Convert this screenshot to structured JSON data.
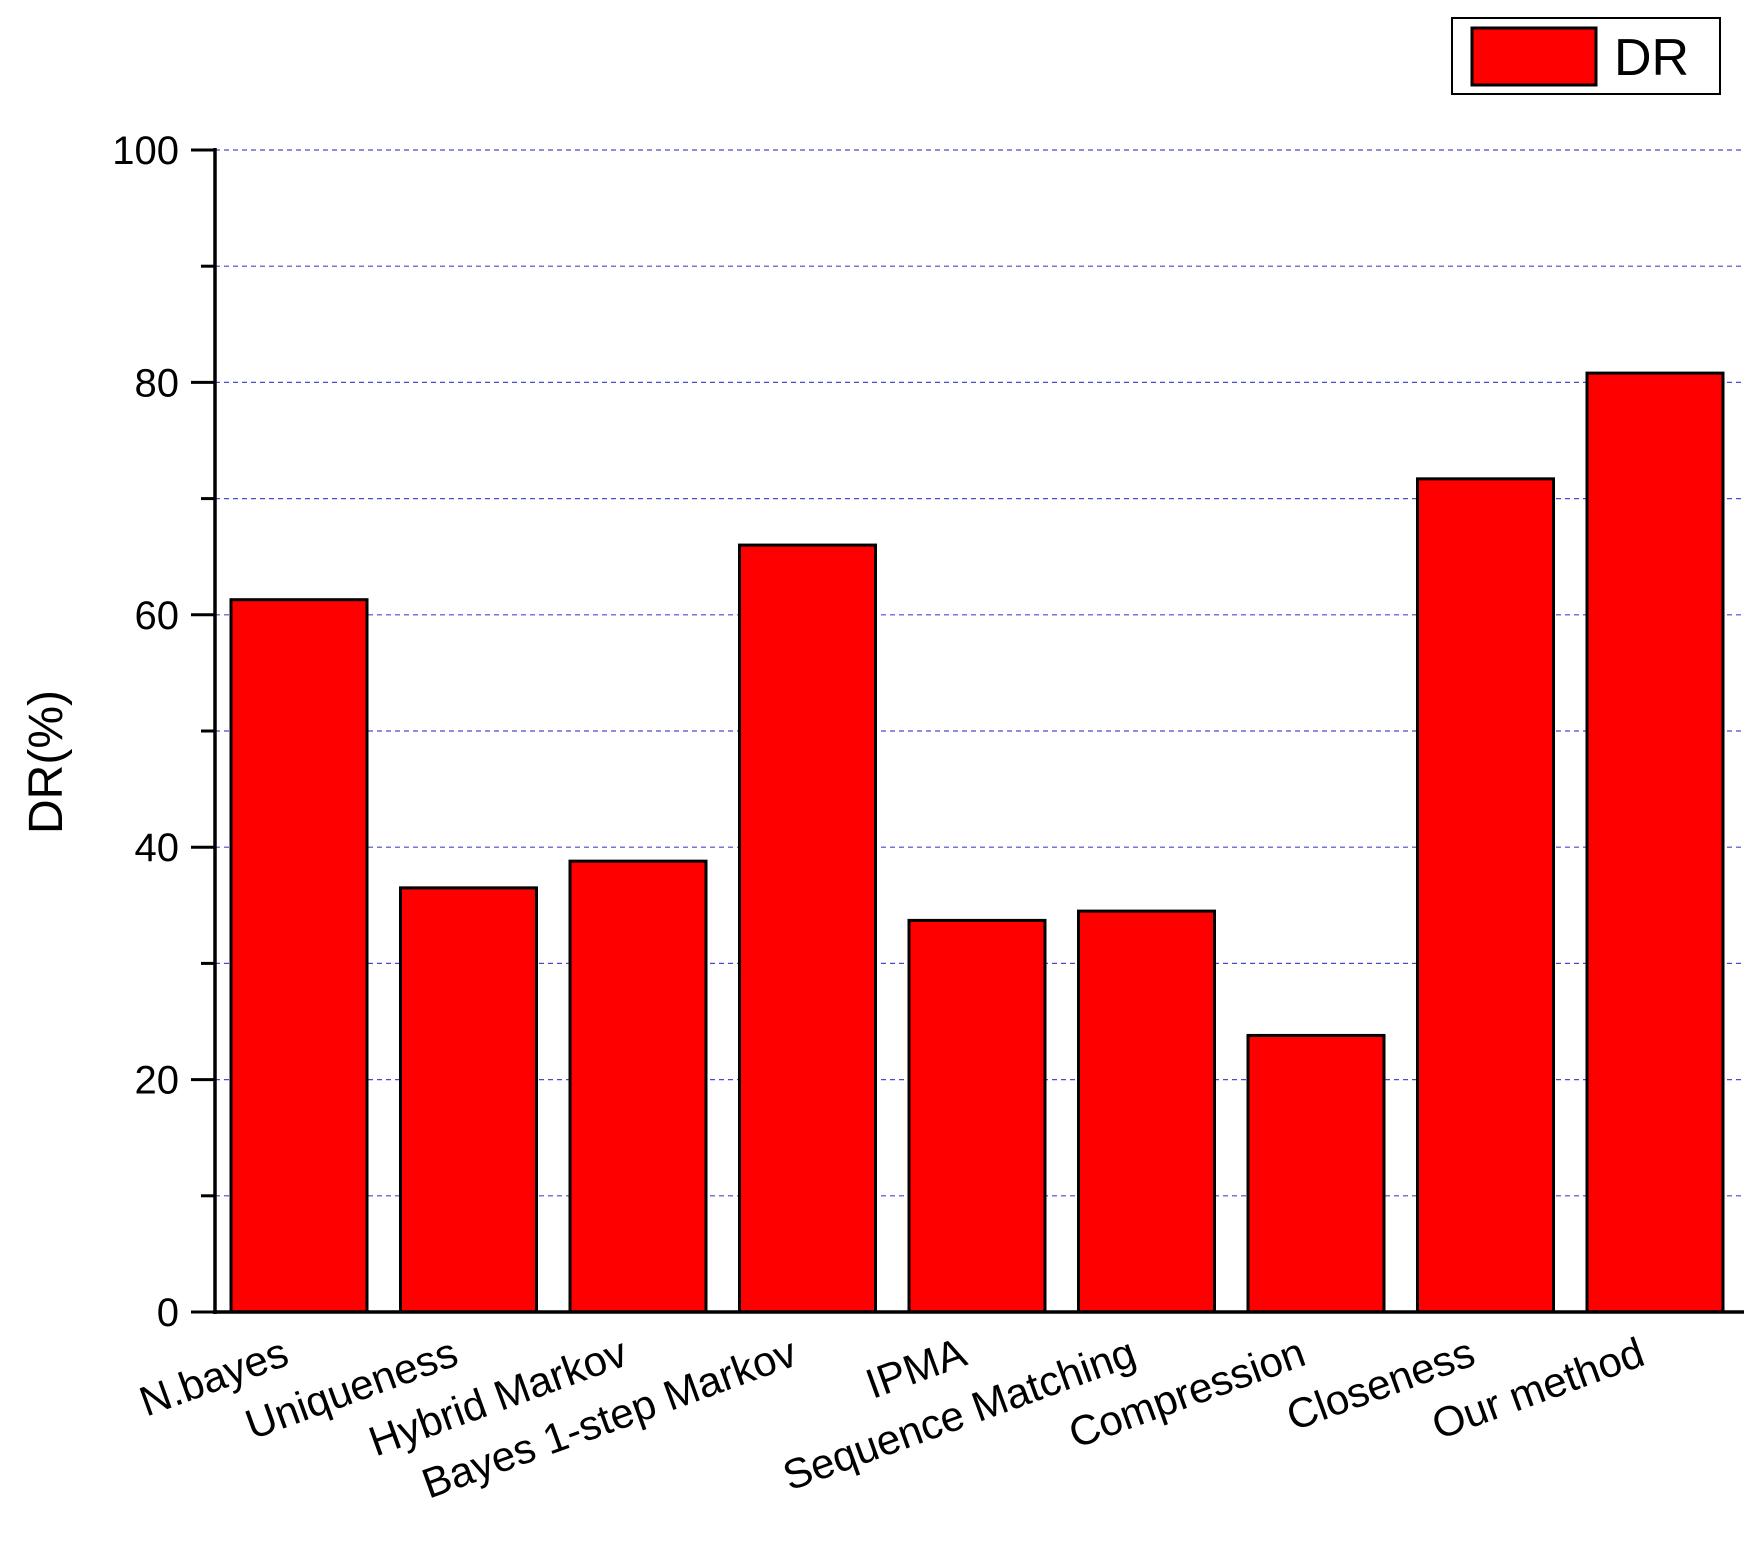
{
  "chart_data": {
    "type": "bar",
    "title": "",
    "xlabel": "",
    "ylabel": "DR(%)",
    "ylim": [
      0,
      100
    ],
    "yticks_major": [
      0,
      20,
      40,
      60,
      80,
      100
    ],
    "yticks_minor": [
      10,
      30,
      50,
      70,
      90
    ],
    "grid": true,
    "legend_position": "top-right",
    "categories": [
      "N.bayes",
      "Uniqueness",
      "Hybrid Markov",
      "Bayes 1-step Markov",
      "IPMA",
      "Sequence Matching",
      "Compression",
      "Closeness",
      "Our method"
    ],
    "series": [
      {
        "name": "DR",
        "values": [
          61.3,
          36.5,
          38.8,
          66.0,
          33.7,
          34.5,
          23.8,
          71.7,
          80.8
        ]
      }
    ]
  },
  "colors": {
    "bar_fill": "#ff0000",
    "bar_stroke": "#000000",
    "grid": "#4a4acf",
    "axis": "#000000"
  }
}
